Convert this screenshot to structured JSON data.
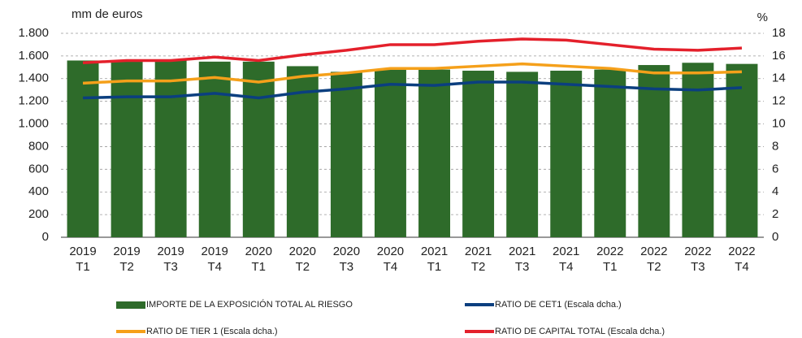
{
  "chart_data": {
    "type": "bar",
    "y_label": "mm de euros",
    "y2_label": "%",
    "categories": [
      "2019\nT1",
      "2019\nT2",
      "2019\nT3",
      "2019\nT4",
      "2020\nT1",
      "2020\nT2",
      "2020\nT3",
      "2020\nT4",
      "2021\nT1",
      "2021\nT2",
      "2021\nT3",
      "2021\nT4",
      "2022\nT1",
      "2022\nT2",
      "2022\nT3",
      "2022\nT4"
    ],
    "series": [
      {
        "name": "IMPORTE DE LA EXPOSICIÓN TOTAL AL RIESGO",
        "type": "bar",
        "axis": "y",
        "color": "#2e6b2a",
        "values": [
          1560,
          1550,
          1560,
          1550,
          1550,
          1510,
          1460,
          1480,
          1480,
          1470,
          1460,
          1470,
          1480,
          1520,
          1540,
          1530
        ]
      },
      {
        "name": "RATIO DE CET1 (Escala dcha.)",
        "type": "line",
        "axis": "y2",
        "color": "#0b3f7f",
        "values": [
          12.3,
          12.4,
          12.4,
          12.7,
          12.3,
          12.8,
          13.1,
          13.5,
          13.4,
          13.7,
          13.7,
          13.5,
          13.3,
          13.1,
          13.0,
          13.2
        ]
      },
      {
        "name": "RATIO DE TIER 1 (Escala dcha.)",
        "type": "line",
        "axis": "y2",
        "color": "#f5a01a",
        "values": [
          13.6,
          13.8,
          13.8,
          14.1,
          13.7,
          14.2,
          14.5,
          14.9,
          14.9,
          15.1,
          15.3,
          15.1,
          14.9,
          14.5,
          14.5,
          14.6
        ]
      },
      {
        "name": "RATIO DE CAPITAL TOTAL (Escala dcha.)",
        "type": "line",
        "axis": "y2",
        "color": "#e4202b",
        "values": [
          15.4,
          15.6,
          15.6,
          15.9,
          15.6,
          16.1,
          16.5,
          17.0,
          17.0,
          17.3,
          17.5,
          17.4,
          17.0,
          16.6,
          16.5,
          16.7
        ]
      }
    ],
    "ylim": [
      0,
      1800
    ],
    "yticks": [
      0,
      200,
      400,
      600,
      800,
      {
        "value": 1000,
        "label": "1.000"
      },
      {
        "value": 1200,
        "label": "1.200"
      },
      {
        "value": 1400,
        "label": "1.400"
      },
      {
        "value": 1600,
        "label": "1.600"
      },
      {
        "value": 1800,
        "label": "1.800"
      }
    ],
    "y2lim": [
      0,
      18
    ],
    "y2ticks": [
      0,
      2,
      4,
      6,
      8,
      10,
      12,
      14,
      16,
      18
    ],
    "grid": true,
    "legend": "bottom"
  }
}
